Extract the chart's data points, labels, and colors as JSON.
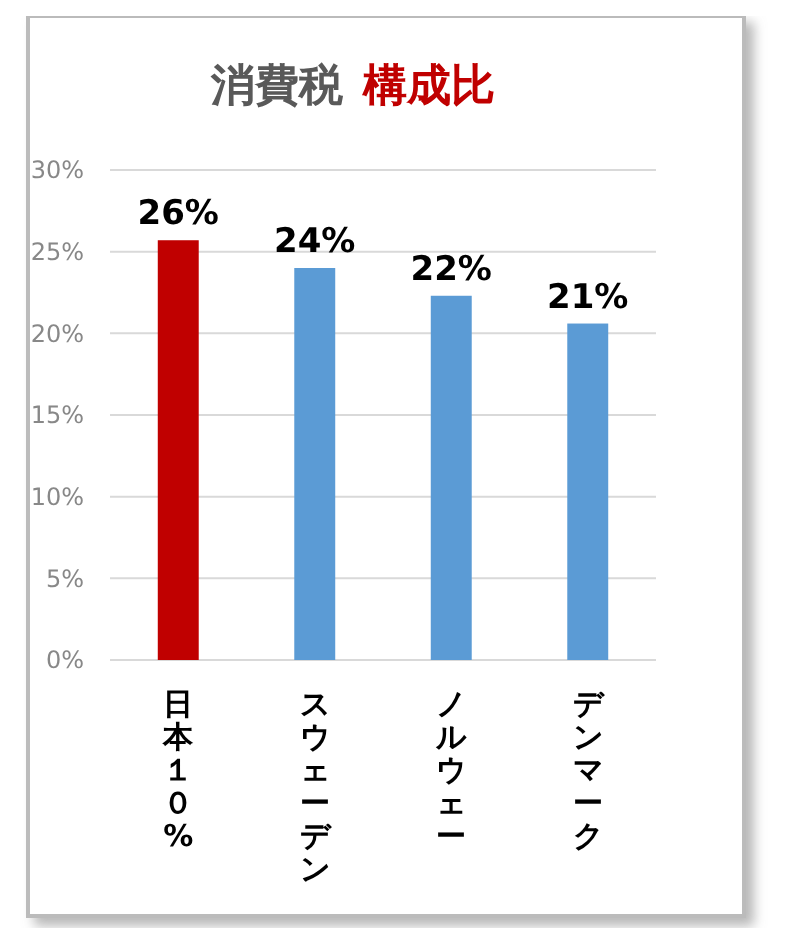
{
  "chart_data": {
    "type": "bar",
    "title": "消費税 構成比",
    "categories": [
      "日本１０%",
      "スウェーデン",
      "ノルウェー",
      "デンマーク"
    ],
    "values": [
      25.7,
      24.0,
      22.3,
      20.6
    ],
    "colors": [
      "#c00000",
      "#5b9bd5",
      "#5b9bd5",
      "#5b9bd5"
    ],
    "value_labels": [
      "26%",
      "24%",
      "22%",
      "21%"
    ],
    "ylim": [
      0,
      30
    ],
    "yticks": [
      {
        "value": 0,
        "label": "0%"
      },
      {
        "value": 5,
        "label": "5%"
      },
      {
        "value": 10,
        "label": "10%"
      },
      {
        "value": 15,
        "label": "15%"
      },
      {
        "value": 20,
        "label": "20%"
      },
      {
        "value": 25,
        "label": "25%"
      },
      {
        "value": 30,
        "label": "30%"
      }
    ],
    "grid": "y"
  }
}
